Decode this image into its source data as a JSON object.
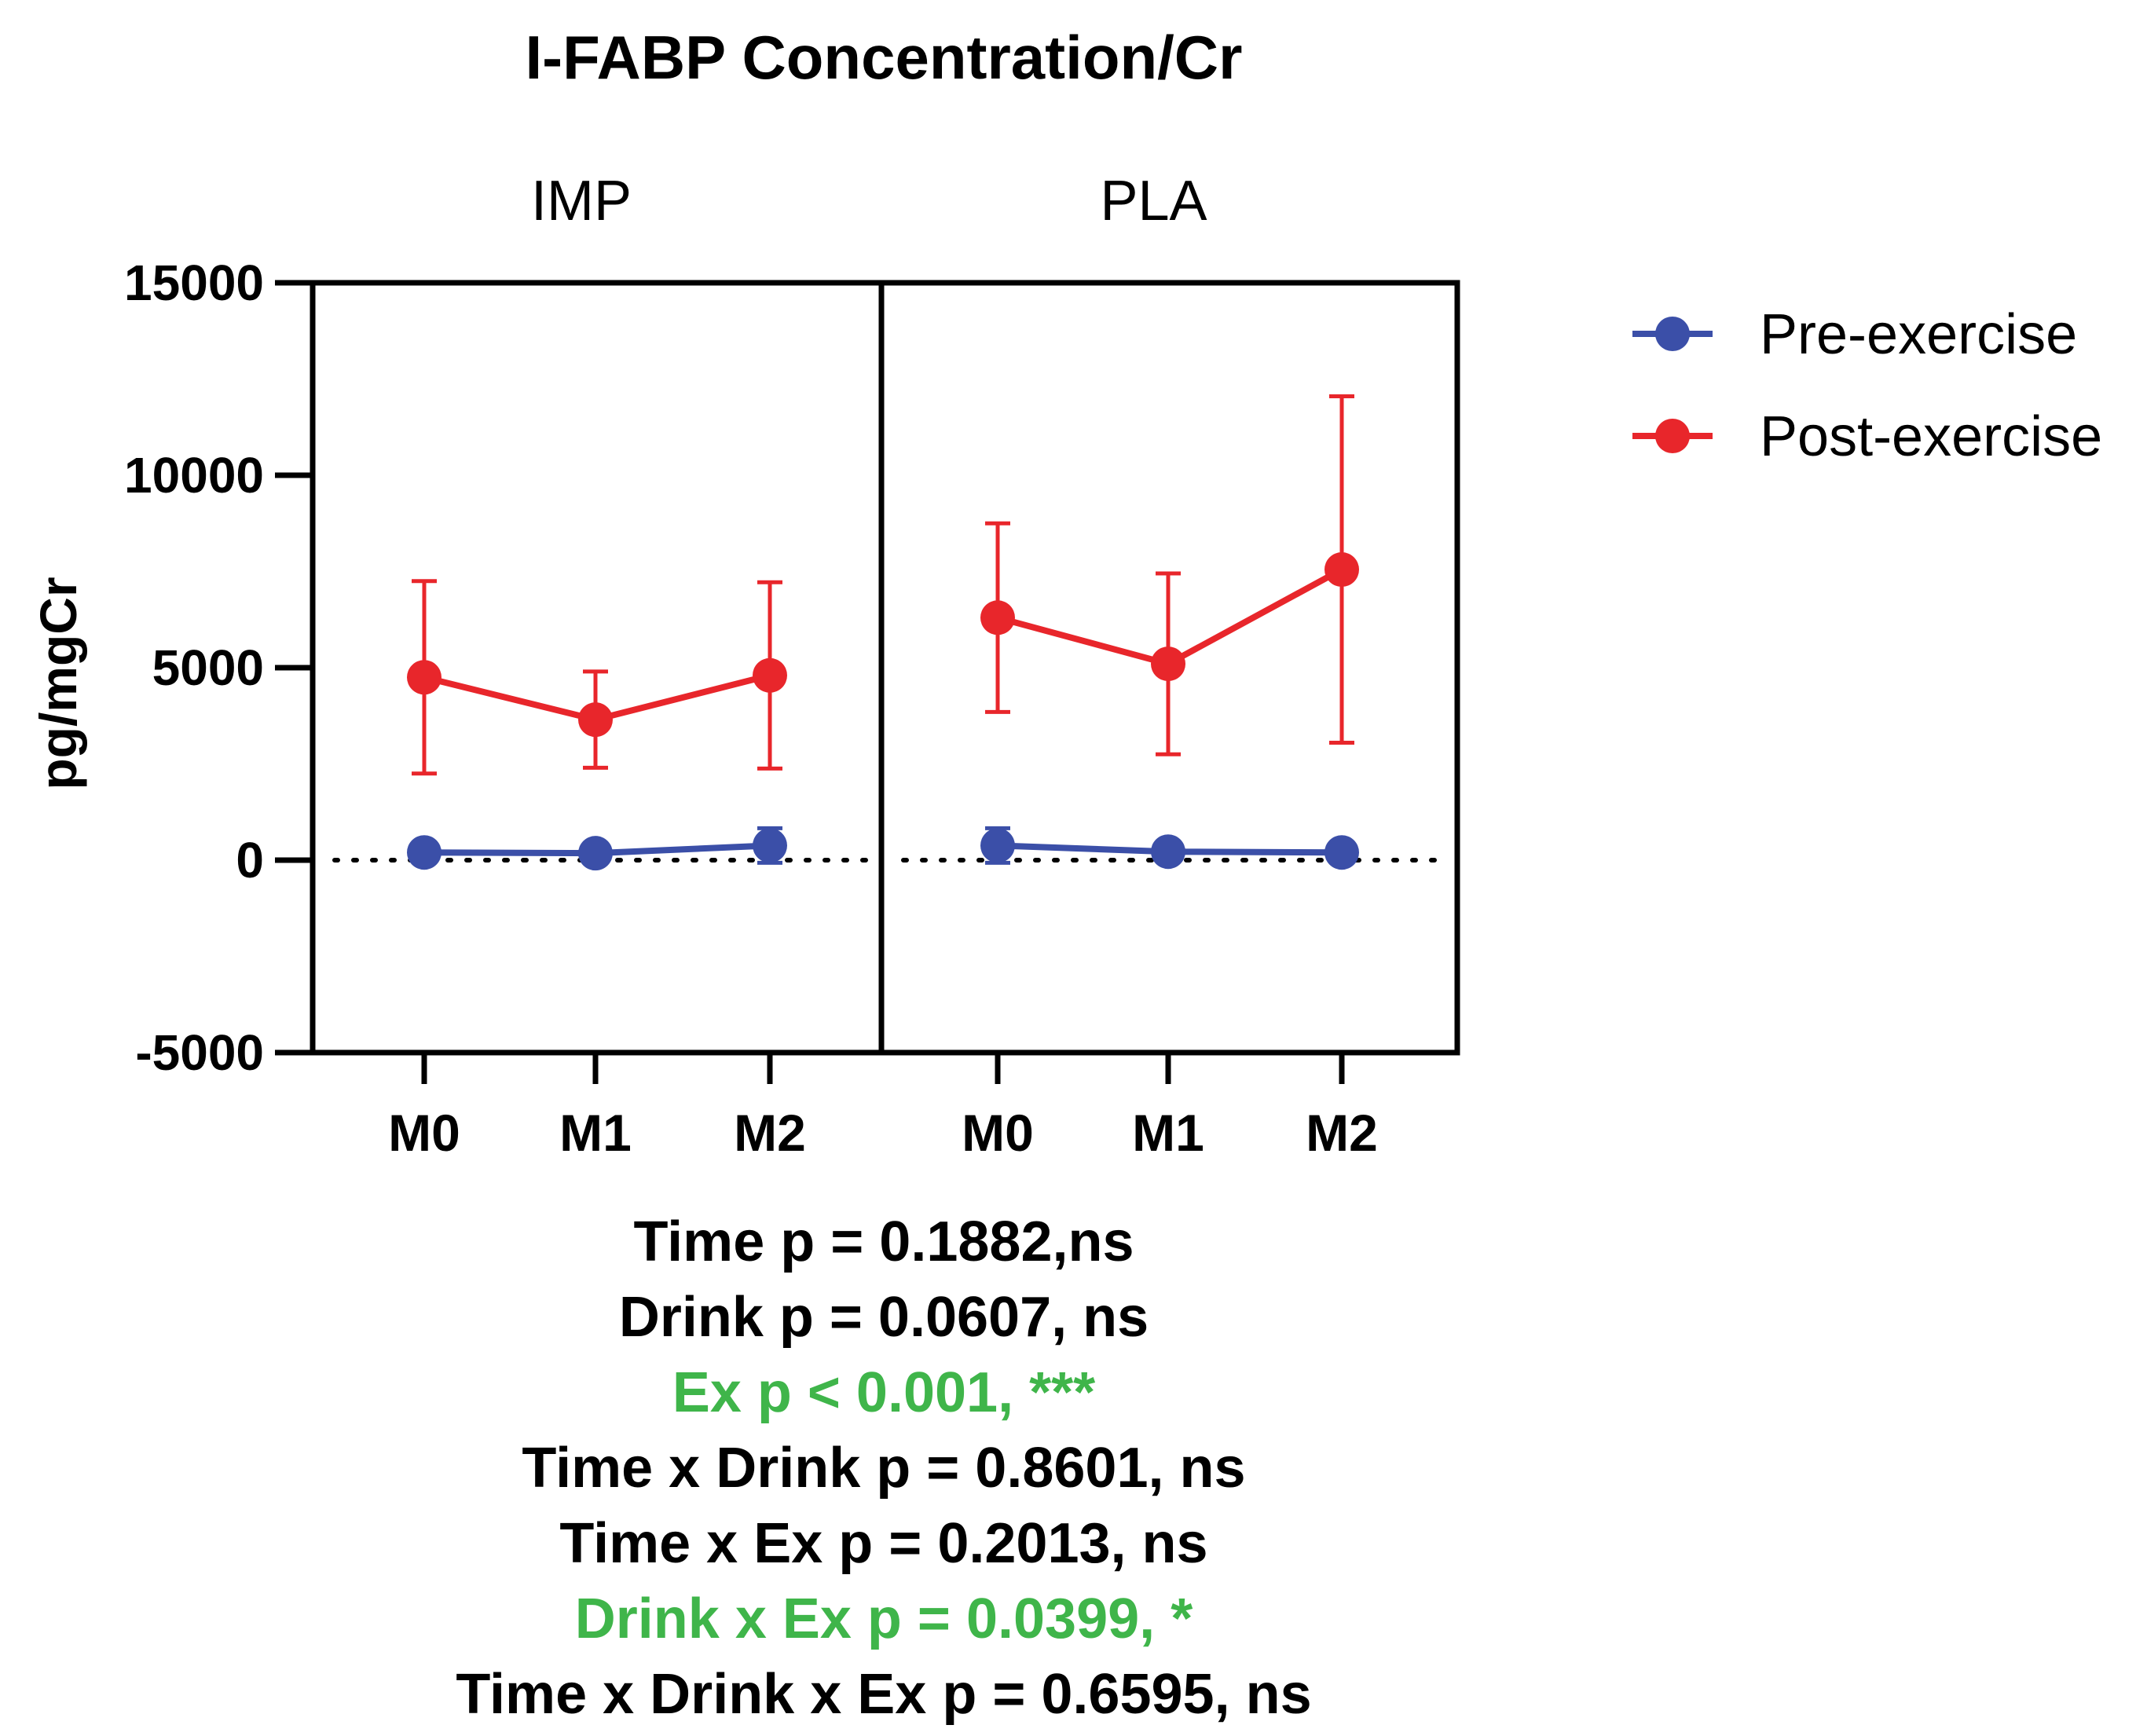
{
  "chart_data": {
    "type": "line",
    "title": "I-FABP Concentration/Cr",
    "ylabel": "pg/mgCr",
    "xlabel": "",
    "ylim": [
      -5000,
      15000
    ],
    "yticks": [
      15000,
      10000,
      5000,
      0,
      -5000
    ],
    "ytick_labels": [
      "15000",
      "10000",
      "5000",
      "0",
      "-5000"
    ],
    "reference_line": 0,
    "legend_position": "right",
    "panels": [
      {
        "label": "IMP",
        "categories": [
          "M0",
          "M1",
          "M2"
        ],
        "series": [
          {
            "name": "Pre-exercise",
            "color": "#3b4fa8",
            "values": [
              200,
              180,
              380
            ],
            "error": [
              60,
              50,
              450
            ]
          },
          {
            "name": "Post-exercise",
            "color": "#e8262b",
            "values": [
              4750,
              3650,
              4800
            ],
            "error": [
              2500,
              1250,
              2420
            ]
          }
        ]
      },
      {
        "label": "PLA",
        "categories": [
          "M0",
          "M1",
          "M2"
        ],
        "series": [
          {
            "name": "Pre-exercise",
            "color": "#3b4fa8",
            "values": [
              380,
              220,
              200
            ],
            "error": [
              450,
              80,
              60
            ]
          },
          {
            "name": "Post-exercise",
            "color": "#e8262b",
            "values": [
              6300,
              5100,
              7550
            ],
            "error": [
              2450,
              2350,
              4500
            ]
          }
        ]
      }
    ],
    "legend": [
      {
        "name": "Pre-exercise",
        "color": "#3b4fa8"
      },
      {
        "name": "Post-exercise",
        "color": "#e8262b"
      }
    ]
  },
  "stats": [
    {
      "text": "Time p = 0.1882,ns",
      "color": "#000000"
    },
    {
      "text": "Drink p = 0.0607, ns",
      "color": "#000000"
    },
    {
      "text": "Ex p < 0.001, ***",
      "color": "#3fb54a"
    },
    {
      "text": "Time x Drink p = 0.8601, ns",
      "color": "#000000"
    },
    {
      "text": "Time x Ex  p = 0.2013, ns",
      "color": "#000000"
    },
    {
      "text": "Drink x Ex p = 0.0399, *",
      "color": "#3fb54a"
    },
    {
      "text": "Time x Drink x Ex p = 0.6595, ns",
      "color": "#000000"
    }
  ]
}
